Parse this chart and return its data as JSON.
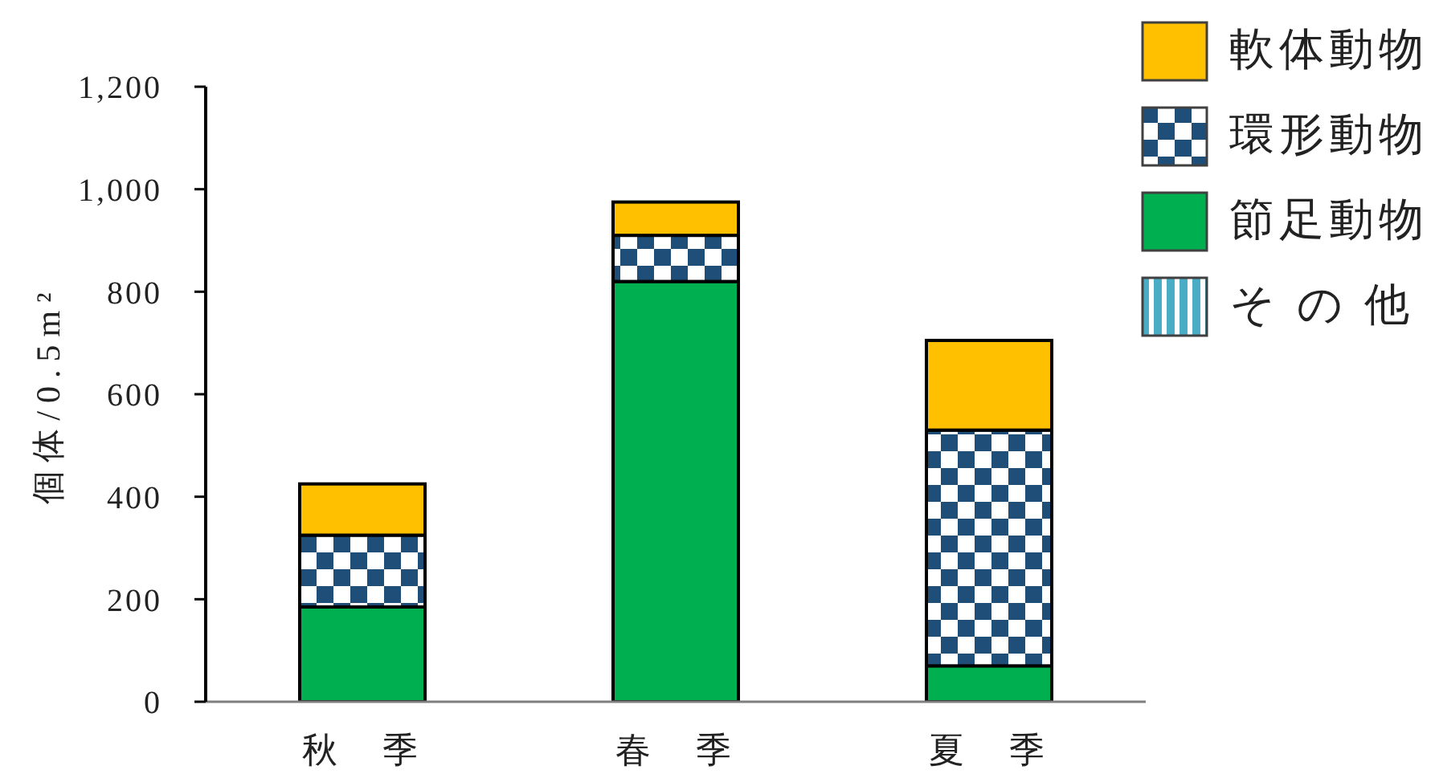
{
  "chart_data": {
    "type": "bar",
    "stacked": true,
    "ylabel": "個体/0.5m²",
    "categories": [
      "秋　季",
      "春　季",
      "夏　季"
    ],
    "series": [
      {
        "name": "そ の 他",
        "color": "#4bacc6",
        "values": [
          0,
          0,
          0
        ]
      },
      {
        "name": "節足動物",
        "color": "#00b050",
        "values": [
          185,
          820,
          70
        ]
      },
      {
        "name": "環形動物",
        "color": "#1f4e79",
        "values": [
          140,
          90,
          460
        ]
      },
      {
        "name": "軟体動物",
        "color": "#ffc000",
        "values": [
          100,
          65,
          175
        ]
      }
    ],
    "ylim": [
      0,
      1200
    ],
    "yticks": [
      0,
      200,
      400,
      600,
      800,
      {
        "value": 1000,
        "label": "1,000"
      },
      {
        "value": 1200,
        "label": "1,200"
      }
    ],
    "legend": "top right"
  }
}
